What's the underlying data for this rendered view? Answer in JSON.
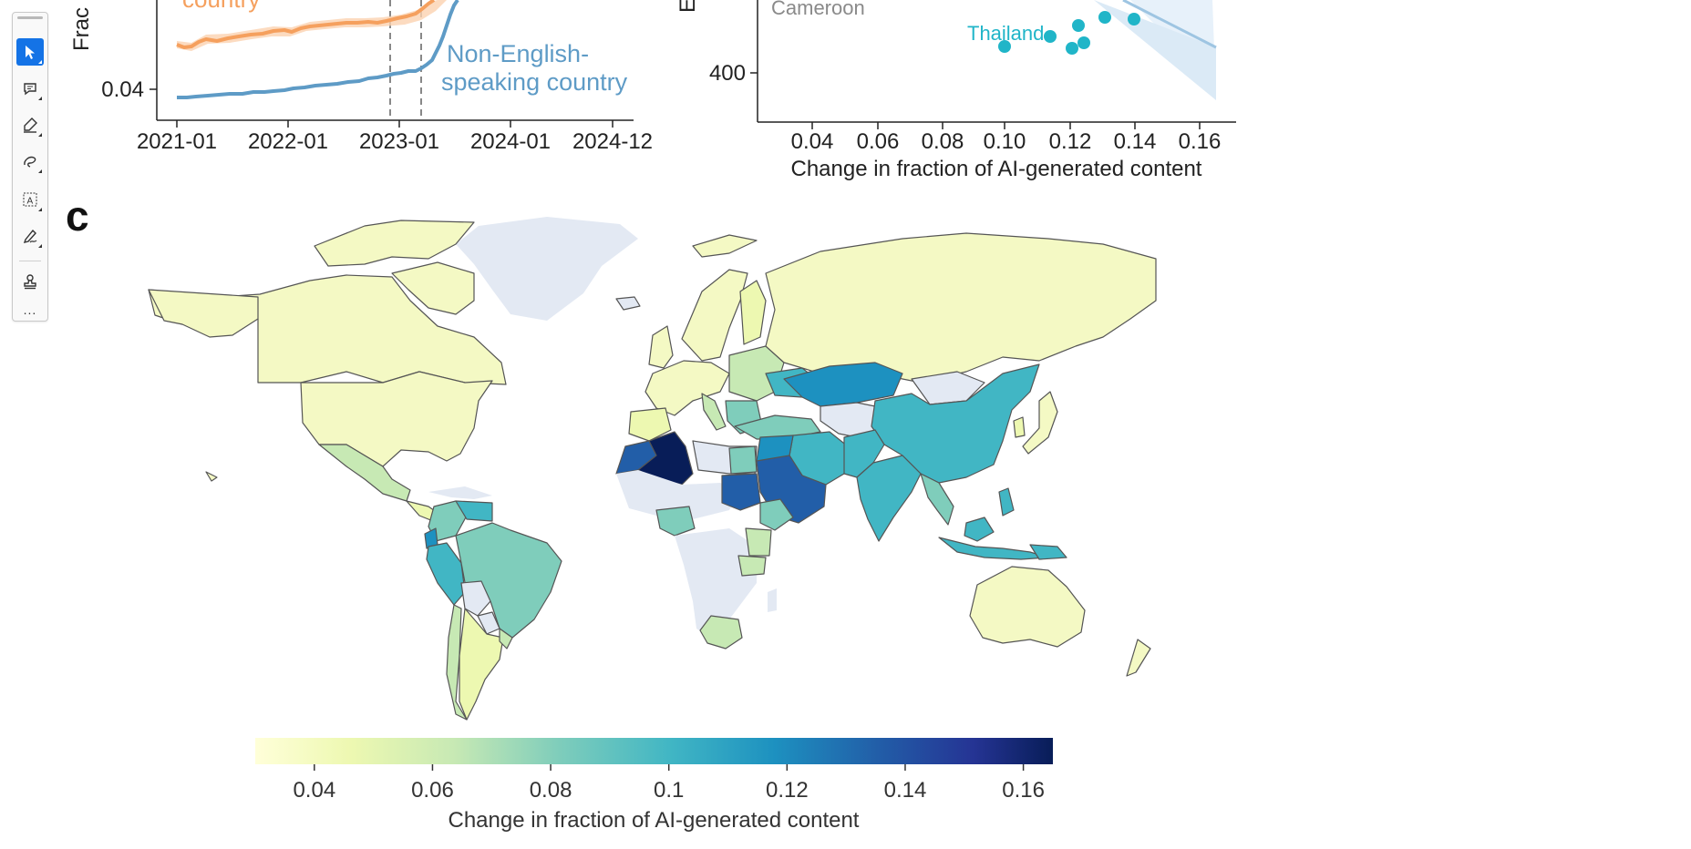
{
  "colors": {
    "english": "#f5a05e",
    "english_band": "#fbd2b0",
    "non_english": "#5e9bc6",
    "thailand": "#20b5c8",
    "cameroon": "#8a8a8a",
    "ocean": "#ffffff",
    "no_data": "#e3e9f3",
    "accent": "#1473e6"
  },
  "toolbar": {
    "tools": [
      {
        "name": "select-tool",
        "icon": "cursor-icon",
        "active": true
      },
      {
        "name": "comment-tool",
        "icon": "comment-icon",
        "active": false
      },
      {
        "name": "highlight-tool",
        "icon": "highlighter-icon",
        "active": false
      },
      {
        "name": "draw-tool",
        "icon": "freehand-icon",
        "active": false
      },
      {
        "name": "text-select-tool",
        "icon": "text-box-icon",
        "active": false
      },
      {
        "name": "fill-sign-tool",
        "icon": "sign-pen-icon",
        "active": false
      },
      {
        "name": "stamp-tool",
        "icon": "stamp-icon",
        "active": false
      }
    ],
    "more_label": "..."
  },
  "panel_a": {
    "ylabel_fragment": "Frac",
    "y_tick": "0.04",
    "x_ticks": [
      "2021-01",
      "2022-01",
      "2023-01",
      "2024-01",
      "2024-12"
    ],
    "label_english": "country",
    "label_non_english_1": "Non-English-",
    "label_non_english_2": "speaking country"
  },
  "panel_b": {
    "ylabel_fragment": "E",
    "y_tick": "400",
    "x_ticks": [
      "0.04",
      "0.06",
      "0.08",
      "0.10",
      "0.12",
      "0.14",
      "0.16"
    ],
    "xlabel": "Change in fraction of AI-generated content",
    "label_cameroon": "Cameroon",
    "label_thailand": "Thailand"
  },
  "panel_c": {
    "letter": "c",
    "colorbar_ticks": [
      "0.04",
      "0.06",
      "0.08",
      "0.1",
      "0.12",
      "0.14",
      "0.16"
    ],
    "colorbar_label": "Change in fraction of AI-generated content",
    "colorbar_range": [
      0.03,
      0.165
    ]
  },
  "chart_data": [
    {
      "type": "line",
      "title": "",
      "xlabel": "",
      "ylabel": "Frac",
      "x": [
        "2021-01",
        "2022-01",
        "2023-01",
        "2024-01",
        "2024-12"
      ],
      "series": [
        {
          "name": "English-speaking country",
          "note": "partially visible, above 0.04"
        },
        {
          "name": "Non-English-speaking country",
          "values_approx": [
            0.039,
            0.041,
            0.043,
            0.06,
            null
          ]
        }
      ],
      "annotations": [
        "vertical dashed lines near 2022-11 and 2023-03"
      ]
    },
    {
      "type": "scatter",
      "xlabel": "Change in fraction of AI-generated content",
      "ylabel": "E",
      "xlim": [
        0.025,
        0.168
      ],
      "points": [
        {
          "label": "Thailand",
          "x": 0.1,
          "y": "≈430"
        },
        {
          "x": 0.114,
          "y": "≈440"
        },
        {
          "x": 0.12,
          "y": "≈456"
        },
        {
          "x": 0.12,
          "y": "≈428"
        },
        {
          "x": 0.123,
          "y": "≈433"
        },
        {
          "x": 0.13,
          "y": "≈462"
        },
        {
          "x": 0.139,
          "y": "≈461"
        }
      ],
      "annotations": [
        "Cameroon (label)",
        "regression line with confidence band"
      ]
    },
    {
      "type": "heatmap",
      "title": "c",
      "subtype": "choropleth world map",
      "colorbar_label": "Change in fraction of AI-generated content",
      "colorbar_ticks": [
        0.04,
        0.06,
        0.08,
        0.1,
        0.12,
        0.14,
        0.16
      ],
      "regions": [
        {
          "name": "North America",
          "value": 0.035
        },
        {
          "name": "South America",
          "value": 0.08
        },
        {
          "name": "Europe",
          "value": 0.04
        },
        {
          "name": "Russia",
          "value": 0.035
        },
        {
          "name": "China",
          "value": 0.11
        },
        {
          "name": "Central Asia",
          "value": 0.125
        },
        {
          "name": "India",
          "value": 0.1
        },
        {
          "name": "Middle East",
          "value": 0.12
        },
        {
          "name": "Algeria",
          "value": 0.165
        },
        {
          "name": "Sudan",
          "value": 0.13
        },
        {
          "name": "Australia",
          "value": 0.035
        },
        {
          "name": "Southeast Asia",
          "value": 0.1
        }
      ]
    }
  ]
}
